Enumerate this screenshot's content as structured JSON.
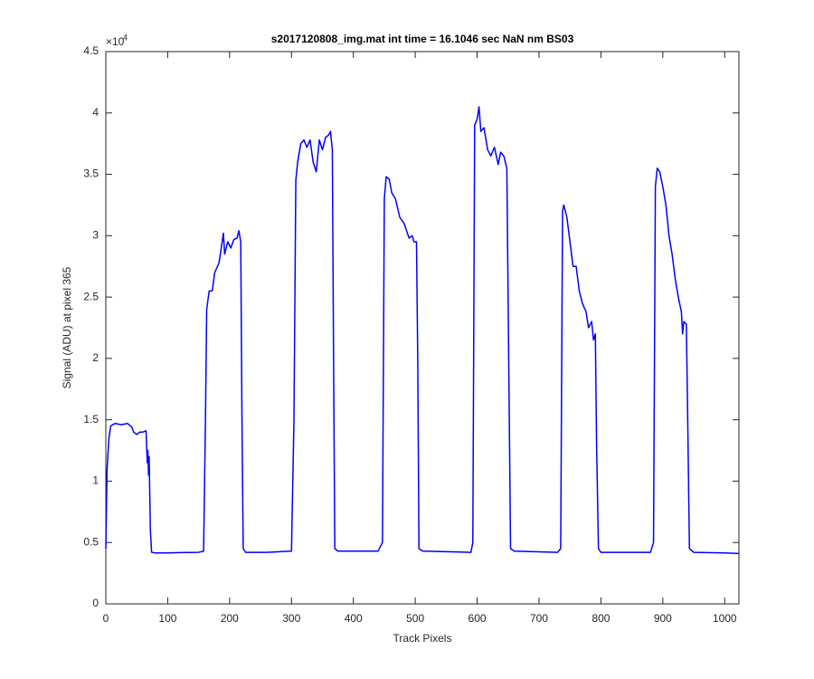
{
  "chart_data": {
    "type": "line",
    "title": "s2017120808_img.mat int time = 16.1046 sec  NaN nm BS03",
    "x_label": "Track Pixels",
    "y_label": "Signal (ADU) at pixel 365",
    "y_multiplier_base": "×10",
    "y_multiplier_exponent": "4",
    "xlim": [
      0,
      1023
    ],
    "ylim": [
      0,
      4.5
    ],
    "xticks": [
      0,
      100,
      200,
      300,
      400,
      500,
      600,
      700,
      800,
      900,
      1000
    ],
    "yticks": [
      0,
      0.5,
      1,
      1.5,
      2,
      2.5,
      3,
      3.5,
      4,
      4.5
    ],
    "grid": false,
    "series": [
      {
        "color": "#0000ff",
        "x": [
          0,
          2,
          5,
          8,
          15,
          25,
          35,
          42,
          45,
          50,
          55,
          60,
          65,
          67,
          68,
          69,
          70,
          72,
          74,
          80,
          100,
          120,
          150,
          158,
          161,
          163,
          167,
          172,
          176,
          183,
          188,
          190,
          192,
          197,
          202,
          207,
          212,
          215,
          218,
          220,
          222,
          226,
          260,
          300,
          304,
          307,
          310,
          315,
          320,
          325,
          330,
          335,
          340,
          345,
          350,
          355,
          360,
          363,
          366,
          368,
          370,
          375,
          440,
          447,
          450,
          453,
          458,
          462,
          468,
          475,
          482,
          490,
          495,
          498,
          502,
          504,
          506,
          512,
          590,
          593,
          596,
          600,
          603,
          606,
          611,
          617,
          622,
          628,
          634,
          638,
          643,
          648,
          651,
          654,
          660,
          730,
          735,
          738,
          740,
          745,
          750,
          755,
          760,
          765,
          770,
          776,
          780,
          785,
          788,
          791,
          793,
          796,
          800,
          880,
          885,
          888,
          891,
          895,
          900,
          905,
          910,
          915,
          920,
          925,
          930,
          932,
          934,
          938,
          940,
          943,
          950,
          1000,
          1023
        ],
        "values": [
          0.45,
          1.1,
          1.35,
          1.45,
          1.47,
          1.46,
          1.47,
          1.44,
          1.4,
          1.38,
          1.4,
          1.4,
          1.41,
          1.15,
          1.25,
          1.05,
          1.2,
          0.6,
          0.42,
          0.415,
          0.415,
          0.418,
          0.42,
          0.43,
          1.5,
          2.4,
          2.55,
          2.55,
          2.7,
          2.78,
          2.95,
          3.02,
          2.85,
          2.95,
          2.9,
          2.97,
          2.98,
          3.04,
          2.95,
          1.5,
          0.45,
          0.42,
          0.42,
          0.43,
          1.5,
          3.45,
          3.6,
          3.75,
          3.78,
          3.72,
          3.78,
          3.6,
          3.52,
          3.78,
          3.7,
          3.8,
          3.82,
          3.85,
          3.7,
          2,
          0.45,
          0.43,
          0.43,
          0.5,
          3.3,
          3.48,
          3.46,
          3.35,
          3.3,
          3.15,
          3.1,
          2.98,
          3.0,
          2.95,
          2.95,
          2.0,
          0.45,
          0.43,
          0.42,
          0.5,
          3.9,
          3.95,
          4.05,
          3.85,
          3.88,
          3.7,
          3.65,
          3.72,
          3.58,
          3.68,
          3.65,
          3.55,
          2.0,
          0.45,
          0.43,
          0.42,
          0.45,
          3.2,
          3.25,
          3.15,
          2.95,
          2.75,
          2.75,
          2.55,
          2.45,
          2.38,
          2.25,
          2.3,
          2.15,
          2.2,
          1.3,
          0.45,
          0.42,
          0.42,
          0.5,
          3.4,
          3.55,
          3.52,
          3.4,
          3.25,
          3.0,
          2.85,
          2.65,
          2.5,
          2.38,
          2.2,
          2.3,
          2.28,
          1.6,
          0.45,
          0.42,
          0.415,
          0.41
        ]
      }
    ]
  }
}
